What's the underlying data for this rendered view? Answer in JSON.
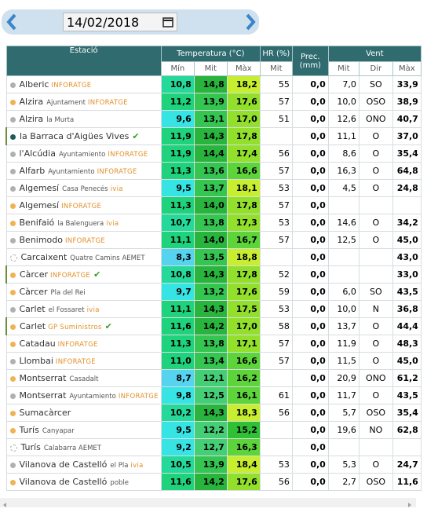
{
  "date": "14/02/2018",
  "header": {
    "station": "Estació",
    "temperature": "Temperatura (°C)",
    "hr": "HR (%)",
    "prec": "Prec. (mm)",
    "wind": "Vent",
    "sub": [
      "Mín",
      "Mit",
      "Màx",
      "Mit",
      "Mit",
      "Dir",
      "Màx"
    ]
  },
  "rows": [
    {
      "dot": "#b0b0b0",
      "name": "Alberic",
      "sub": "",
      "brand": "INFORATGE",
      "check": false,
      "cells": [
        "10,8",
        "14,8",
        "18,2",
        "55",
        "0,0",
        "7,0",
        "SO",
        "33,9"
      ]
    },
    {
      "dot": "#f0b252",
      "name": "Alzira",
      "sub": "Ajuntament",
      "brand": "INFORATGE",
      "check": false,
      "cells": [
        "11,2",
        "13,9",
        "17,6",
        "57",
        "0,0",
        "10,0",
        "OSO",
        "38,9"
      ]
    },
    {
      "dot": "#b0b0b0",
      "name": "Alzira",
      "sub": "la Murta",
      "brand": "",
      "check": false,
      "cells": [
        "9,6",
        "13,1",
        "17,0",
        "51",
        "0,0",
        "12,6",
        "ONO",
        "40,7"
      ]
    },
    {
      "dot": "#1e5a5e",
      "name": "la Barraca d'Aigües Vives",
      "sub": "",
      "brand": "",
      "check": true,
      "cells": [
        "11,9",
        "14,3",
        "17,8",
        "",
        "0,0",
        "11,1",
        "O",
        "37,0"
      ]
    },
    {
      "dot": "#b0b0b0",
      "name": "l'Alcúdia",
      "sub": "Ayuntamiento",
      "brand": "INFORATGE",
      "check": false,
      "cells": [
        "11,9",
        "14,4",
        "17,4",
        "56",
        "0,0",
        "8,6",
        "O",
        "35,4"
      ]
    },
    {
      "dot": "#b0b0b0",
      "name": "Alfarb",
      "sub": "Ayuntamiento",
      "brand": "INFORATGE",
      "check": false,
      "cells": [
        "11,3",
        "13,6",
        "16,6",
        "57",
        "0,0",
        "16,3",
        "O",
        "64,8"
      ]
    },
    {
      "dot": "#b0b0b0",
      "name": "Algemesí",
      "sub": "Casa Penecés",
      "brand": "ivia",
      "check": false,
      "cells": [
        "9,5",
        "13,7",
        "18,1",
        "53",
        "0,0",
        "4,5",
        "O",
        "24,8"
      ]
    },
    {
      "dot": "#f0b252",
      "name": "Algemesí",
      "sub": "",
      "brand": "INFORATGE",
      "check": false,
      "cells": [
        "11,3",
        "14,0",
        "17,8",
        "57",
        "0,0",
        "",
        "",
        ""
      ]
    },
    {
      "dot": "#f0b252",
      "name": "Benifaió",
      "sub": "la Balenguera",
      "brand": "ivia",
      "check": false,
      "cells": [
        "10,7",
        "13,8",
        "17,3",
        "53",
        "0,0",
        "14,6",
        "O",
        "34,2"
      ]
    },
    {
      "dot": "#b0b0b0",
      "name": "Benimodo",
      "sub": "",
      "brand": "INFORATGE",
      "check": false,
      "cells": [
        "11,1",
        "14,0",
        "16,7",
        "57",
        "0,0",
        "12,5",
        "O",
        "45,0"
      ]
    },
    {
      "dot": "none",
      "name": "Carcaixent",
      "sub": "Quatre Camins AEMET",
      "brand": "",
      "check": false,
      "cells": [
        "8,3",
        "13,5",
        "18,8",
        "",
        "0,0",
        "",
        "",
        "43,0"
      ]
    },
    {
      "dot": "#f0b252",
      "name": "Càrcer",
      "sub": "",
      "brand": "INFORATGE",
      "check": true,
      "cells": [
        "10,8",
        "14,3",
        "17,8",
        "52",
        "0,0",
        "",
        "",
        "33,0"
      ]
    },
    {
      "dot": "#f0b252",
      "name": "Càrcer",
      "sub": "Pla del Rei",
      "brand": "",
      "check": false,
      "cells": [
        "9,7",
        "13,2",
        "17,6",
        "59",
        "0,0",
        "6,0",
        "SO",
        "43,5"
      ]
    },
    {
      "dot": "#b0b0b0",
      "name": "Carlet",
      "sub": "el Fossaret",
      "brand": "ivia",
      "check": false,
      "cells": [
        "11,1",
        "14,3",
        "17,5",
        "53",
        "0,0",
        "10,0",
        "N",
        "36,8"
      ]
    },
    {
      "dot": "#f0b252",
      "name": "Carlet",
      "sub": "",
      "brand": "GP Suministros",
      "check": true,
      "cells": [
        "11,6",
        "14,2",
        "17,0",
        "58",
        "0,0",
        "13,7",
        "O",
        "44,4"
      ]
    },
    {
      "dot": "#f0b252",
      "name": "Catadau",
      "sub": "",
      "brand": "INFORATGE",
      "check": false,
      "cells": [
        "11,3",
        "13,8",
        "17,1",
        "57",
        "0,0",
        "11,9",
        "O",
        "48,3"
      ]
    },
    {
      "dot": "#b0b0b0",
      "name": "Llombai",
      "sub": "",
      "brand": "INFORATGE",
      "check": false,
      "cells": [
        "11,0",
        "13,4",
        "16,6",
        "57",
        "0,0",
        "11,5",
        "O",
        "45,0"
      ]
    },
    {
      "dot": "#f0b252",
      "name": "Montserrat",
      "sub": "Casadalt",
      "brand": "",
      "check": false,
      "cells": [
        "8,7",
        "12,1",
        "16,2",
        "",
        "0,0",
        "20,9",
        "ONO",
        "61,2"
      ]
    },
    {
      "dot": "#b0b0b0",
      "name": "Montserrat",
      "sub": "Ayuntamiento",
      "brand": "INFORATGE",
      "check": false,
      "cells": [
        "9,8",
        "12,5",
        "16,1",
        "61",
        "0,0",
        "11,7",
        "O",
        "43,5"
      ]
    },
    {
      "dot": "#f0b252",
      "name": "Sumacàrcer",
      "sub": "",
      "brand": "",
      "check": false,
      "cells": [
        "10,2",
        "14,3",
        "18,3",
        "56",
        "0,0",
        "5,7",
        "OSO",
        "35,4"
      ]
    },
    {
      "dot": "#f0b252",
      "name": "Turís",
      "sub": "Canyapar",
      "brand": "",
      "check": false,
      "cells": [
        "9,5",
        "12,2",
        "15,2",
        "",
        "0,0",
        "19,6",
        "NO",
        "62,8"
      ]
    },
    {
      "dot": "none",
      "name": "Turís",
      "sub": "Calabarra AEMET",
      "brand": "",
      "check": false,
      "cells": [
        "9,2",
        "12,7",
        "16,3",
        "",
        "0,0",
        "",
        "",
        ""
      ]
    },
    {
      "dot": "#b0b0b0",
      "name": "Vilanova de Castelló",
      "sub": "el Pla",
      "brand": "ivia",
      "check": false,
      "cells": [
        "10,5",
        "13,9",
        "18,4",
        "53",
        "0,0",
        "5,3",
        "O",
        "24,7"
      ]
    },
    {
      "dot": "#f0b252",
      "name": "Vilanova de Castelló",
      "sub": "poble",
      "brand": "",
      "check": false,
      "cells": [
        "11,6",
        "14,2",
        "17,6",
        "56",
        "0,0",
        "2,7",
        "OSO",
        "11,6"
      ]
    }
  ]
}
